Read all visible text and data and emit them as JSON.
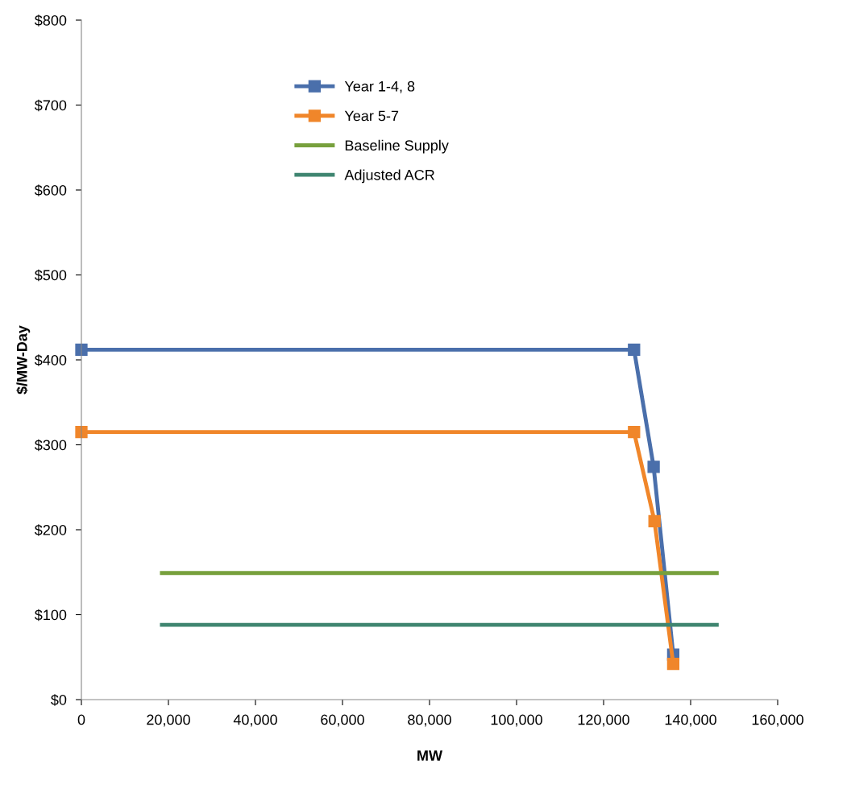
{
  "chart_data": {
    "type": "line",
    "xlabel": "MW",
    "ylabel": "$/MW-Day",
    "series": [
      {
        "name": "Year 1-4, 8",
        "color": "#4a6fab",
        "marker": "square",
        "x": [
          0,
          127000,
          131500,
          136000
        ],
        "values": [
          412,
          412,
          274,
          53
        ]
      },
      {
        "name": "Year 5-7",
        "color": "#f0862a",
        "marker": "square",
        "x": [
          0,
          127000,
          131700,
          136000
        ],
        "values": [
          315,
          315,
          210,
          42
        ]
      },
      {
        "name": "Baseline Supply",
        "color": "#77a03c",
        "marker": "none",
        "x": [
          18500,
          146000
        ],
        "values": [
          149,
          149
        ]
      },
      {
        "name": "Adjusted ACR",
        "color": "#3f8570",
        "marker": "none",
        "x": [
          18500,
          146000
        ],
        "values": [
          88,
          88
        ]
      }
    ],
    "xlim": [
      0,
      160000
    ],
    "xticks": [
      {
        "value": 0,
        "label": "0"
      },
      {
        "value": 20000,
        "label": "20,000"
      },
      {
        "value": 40000,
        "label": "40,000"
      },
      {
        "value": 60000,
        "label": "60,000"
      },
      {
        "value": 80000,
        "label": "80,000"
      },
      {
        "value": 100000,
        "label": "100,000"
      },
      {
        "value": 120000,
        "label": "120,000"
      },
      {
        "value": 140000,
        "label": "140,000"
      },
      {
        "value": 160000,
        "label": "160,000"
      }
    ],
    "ylim": [
      0,
      800
    ],
    "yticks": [
      {
        "value": 0,
        "label": "$0"
      },
      {
        "value": 100,
        "label": "$100"
      },
      {
        "value": 200,
        "label": "$200"
      },
      {
        "value": 300,
        "label": "$300"
      },
      {
        "value": 400,
        "label": "$400"
      },
      {
        "value": 500,
        "label": "$500"
      },
      {
        "value": 600,
        "label": "$600"
      },
      {
        "value": 700,
        "label": "$700"
      },
      {
        "value": 800,
        "label": "$800"
      }
    ],
    "grid": false,
    "legend": "top",
    "line_style": "solid"
  }
}
